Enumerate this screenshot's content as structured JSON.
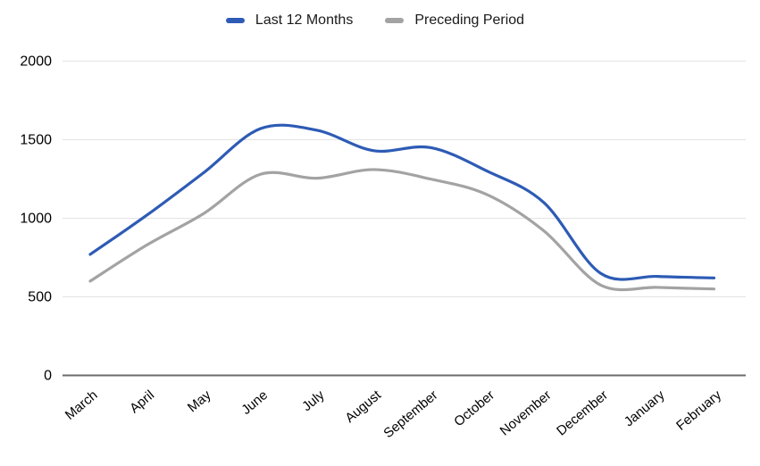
{
  "chart_data": {
    "type": "line",
    "smooth": true,
    "title": "",
    "xlabel": "",
    "ylabel": "",
    "categories": [
      "March",
      "April",
      "May",
      "June",
      "July",
      "August",
      "September",
      "October",
      "November",
      "December",
      "January",
      "February"
    ],
    "series": [
      {
        "name": "Last 12 Months",
        "color": "#2d5bb5",
        "values": [
          770,
          1020,
          1290,
          1570,
          1560,
          1430,
          1450,
          1300,
          1100,
          650,
          630,
          620
        ]
      },
      {
        "name": "Preceding Period",
        "color": "#a3a3a3",
        "values": [
          600,
          830,
          1030,
          1280,
          1255,
          1310,
          1250,
          1150,
          920,
          575,
          560,
          550
        ]
      }
    ],
    "ylim": [
      0,
      2000
    ],
    "yticks": [
      0,
      500,
      1000,
      1500,
      2000
    ],
    "grid": true,
    "legend_position": "top",
    "x_label_rotation": -40,
    "colors": {
      "gridline": "#e3e3e3",
      "axis_line": "#6b6b6b",
      "tick_text": "#000000",
      "background": "#ffffff"
    }
  }
}
